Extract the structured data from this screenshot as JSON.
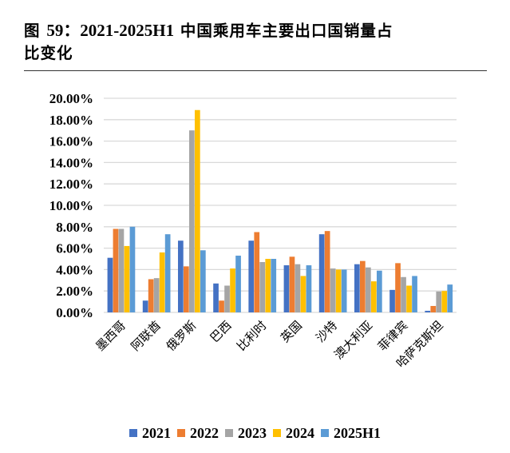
{
  "header": {
    "figure_label": "图",
    "figure_number": "59：2021-2025H1",
    "title_rest_line1": " 中国乘用车主要出口国销量占",
    "title_line2": "比变化"
  },
  "chart_data": {
    "type": "bar",
    "title": "图 59：2021-2025H1 中国乘用车主要出口国销量占比变化",
    "xlabel": "",
    "ylabel": "",
    "ylim": [
      0,
      20
    ],
    "yticks": [
      "0.00%",
      "2.00%",
      "4.00%",
      "6.00%",
      "8.00%",
      "10.00%",
      "12.00%",
      "14.00%",
      "16.00%",
      "18.00%",
      "20.00%"
    ],
    "grid": true,
    "legend_position": "bottom",
    "categories": [
      "墨西哥",
      "阿联酋",
      "俄罗斯",
      "巴西",
      "比利时",
      "英国",
      "沙特",
      "澳大利亚",
      "菲律宾",
      "哈萨克斯坦"
    ],
    "series": [
      {
        "name": "2021",
        "color": "#4472C4",
        "values": [
          5.1,
          1.1,
          6.7,
          2.7,
          6.7,
          4.4,
          7.3,
          4.5,
          2.1,
          0.15
        ]
      },
      {
        "name": "2022",
        "color": "#ED7D31",
        "values": [
          7.8,
          3.1,
          4.3,
          1.1,
          7.5,
          5.2,
          7.6,
          4.8,
          4.6,
          0.6
        ]
      },
      {
        "name": "2023",
        "color": "#A5A5A5",
        "values": [
          7.8,
          3.2,
          17.0,
          2.5,
          4.7,
          4.5,
          4.1,
          4.2,
          3.3,
          1.95
        ]
      },
      {
        "name": "2024",
        "color": "#FFC000",
        "values": [
          6.2,
          5.6,
          18.9,
          4.1,
          5.0,
          3.4,
          4.0,
          2.9,
          2.5,
          2.0
        ]
      },
      {
        "name": "2025H1",
        "color": "#5B9BD5",
        "values": [
          8.0,
          7.3,
          5.8,
          5.3,
          5.0,
          4.4,
          4.0,
          3.9,
          3.4,
          2.6
        ]
      }
    ]
  },
  "legend": {
    "items": [
      {
        "label": "2021",
        "color": "#4472C4"
      },
      {
        "label": "2022",
        "color": "#ED7D31"
      },
      {
        "label": "2023",
        "color": "#A5A5A5"
      },
      {
        "label": "2024",
        "color": "#FFC000"
      },
      {
        "label": "2025H1",
        "color": "#5B9BD5"
      }
    ]
  },
  "style": {
    "gridline_color": "#D9D9D9",
    "axis_line_color": "#D9D9D9"
  }
}
